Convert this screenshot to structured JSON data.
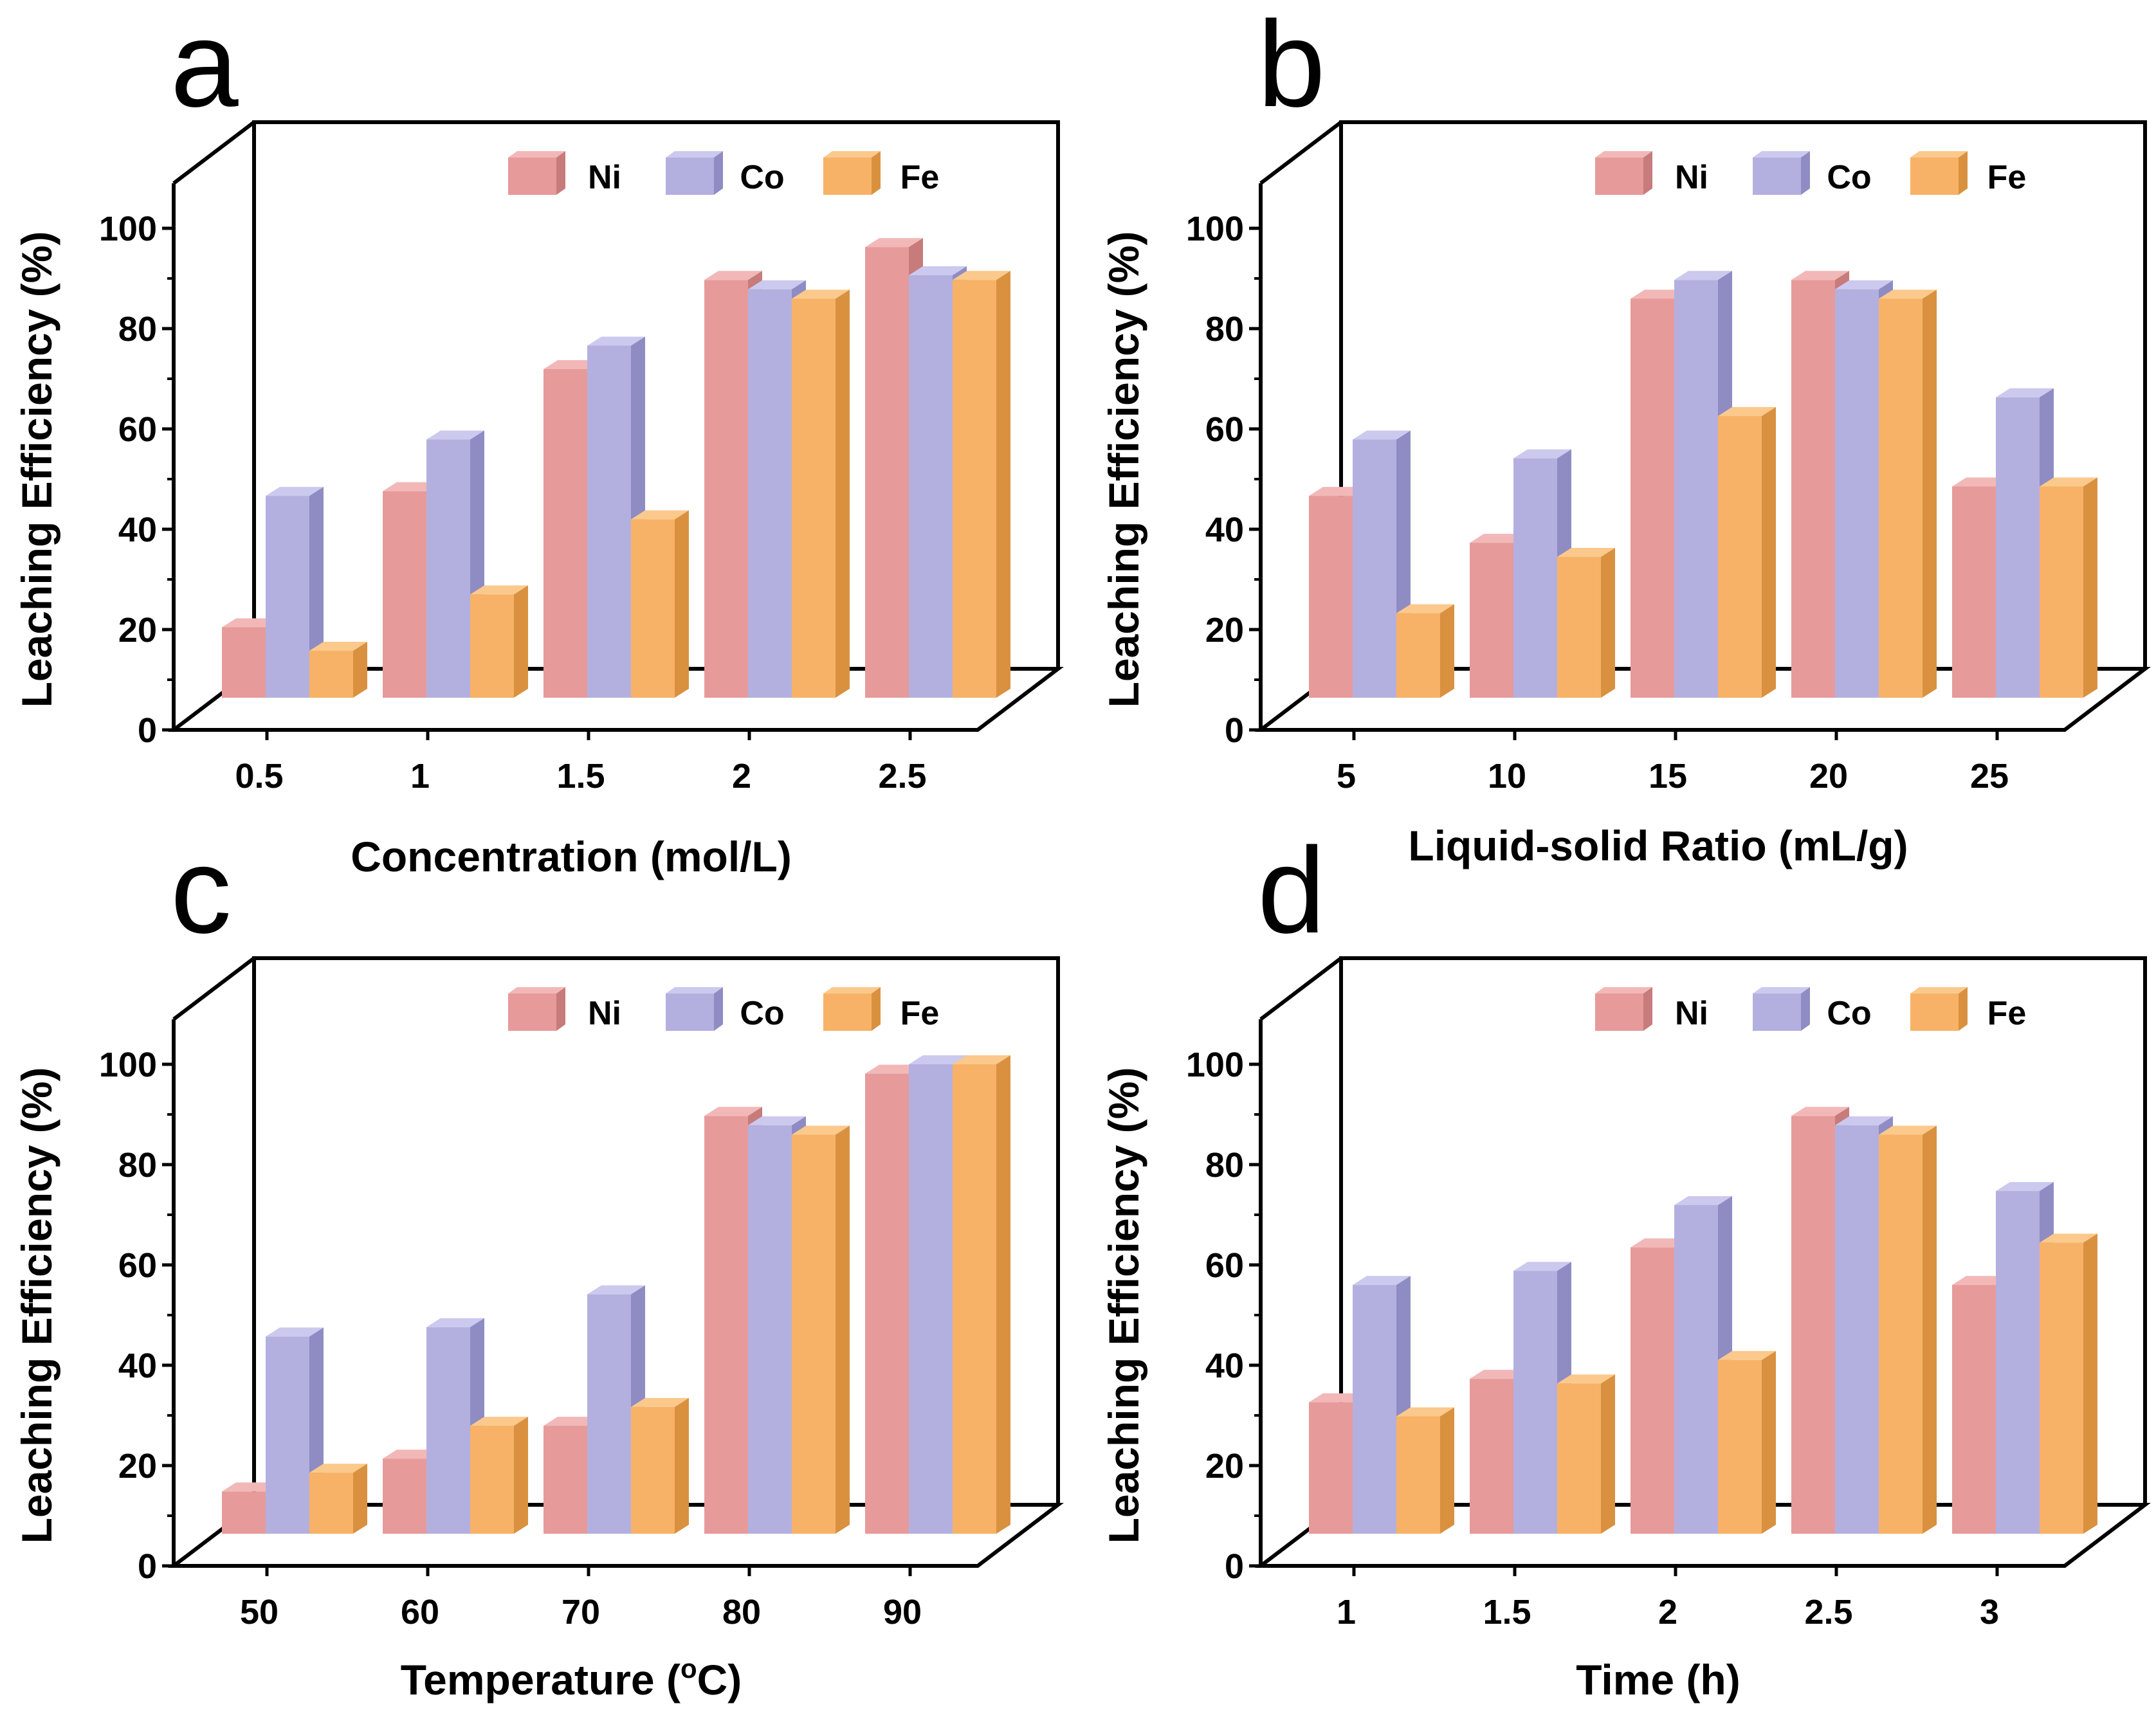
{
  "colors": {
    "Ni": {
      "front": "#e79a9a",
      "side": "#c77b7b",
      "top": "#f2b8b8"
    },
    "Co": {
      "front": "#b3b0e0",
      "side": "#8f8cc4",
      "top": "#ccc9ef"
    },
    "Fe": {
      "front": "#f7b267",
      "side": "#d99140",
      "top": "#fbc98c"
    }
  },
  "chart_data": [
    {
      "panel": "a",
      "type": "bar",
      "title": "",
      "xlabel": "Concentration (mol/L)",
      "ylabel": "Leaching Efficiency (%)",
      "ylim": [
        0,
        100
      ],
      "yticks": [
        "0",
        "20",
        "40",
        "60",
        "80",
        "100"
      ],
      "categories": [
        "0.5",
        "1",
        "1.5",
        "2",
        "2.5"
      ],
      "legend": [
        "Ni",
        "Co",
        "Fe"
      ],
      "series": [
        {
          "name": "Ni",
          "values": [
            15,
            44,
            70,
            89,
            96
          ]
        },
        {
          "name": "Co",
          "values": [
            43,
            55,
            75,
            87,
            90
          ]
        },
        {
          "name": "Fe",
          "values": [
            10,
            22,
            38,
            85,
            89
          ]
        }
      ]
    },
    {
      "panel": "b",
      "type": "bar",
      "title": "",
      "xlabel": "Liquid-solid Ratio (mL/g)",
      "ylabel": "Leaching Efficiency (%)",
      "ylim": [
        0,
        100
      ],
      "yticks": [
        "0",
        "20",
        "40",
        "60",
        "80",
        "100"
      ],
      "categories": [
        "5",
        "10",
        "15",
        "20",
        "25"
      ],
      "legend": [
        "Ni",
        "Co",
        "Fe"
      ],
      "series": [
        {
          "name": "Ni",
          "values": [
            43,
            33,
            85,
            89,
            45
          ]
        },
        {
          "name": "Co",
          "values": [
            55,
            51,
            89,
            87,
            64
          ]
        },
        {
          "name": "Fe",
          "values": [
            18,
            30,
            60,
            85,
            45
          ]
        }
      ]
    },
    {
      "panel": "c",
      "type": "bar",
      "title": "",
      "xlabel": "Temperature (",
      "xlabel_sup": "o",
      "xlabel_end": "C)",
      "ylabel": "Leaching Efficiency (%)",
      "ylim": [
        0,
        100
      ],
      "yticks": [
        "0",
        "20",
        "40",
        "60",
        "80",
        "100"
      ],
      "categories": [
        "50",
        "60",
        "70",
        "80",
        "90"
      ],
      "legend": [
        "Ni",
        "Co",
        "Fe"
      ],
      "series": [
        {
          "name": "Ni",
          "values": [
            9,
            16,
            23,
            89,
            98
          ]
        },
        {
          "name": "Co",
          "values": [
            42,
            44,
            51,
            87,
            100
          ]
        },
        {
          "name": "Fe",
          "values": [
            13,
            23,
            27,
            85,
            100
          ]
        }
      ]
    },
    {
      "panel": "d",
      "type": "bar",
      "title": "",
      "xlabel": "Time (h)",
      "ylabel": "Leaching Efficiency (%)",
      "ylim": [
        0,
        100
      ],
      "yticks": [
        "0",
        "20",
        "40",
        "60",
        "80",
        "100"
      ],
      "categories": [
        "1",
        "1.5",
        "2",
        "2.5",
        "3"
      ],
      "legend": [
        "Ni",
        "Co",
        "Fe"
      ],
      "series": [
        {
          "name": "Ni",
          "values": [
            28,
            33,
            61,
            89,
            53
          ]
        },
        {
          "name": "Co",
          "values": [
            53,
            56,
            70,
            87,
            73
          ]
        },
        {
          "name": "Fe",
          "values": [
            25,
            32,
            37,
            85,
            62
          ]
        }
      ]
    }
  ]
}
